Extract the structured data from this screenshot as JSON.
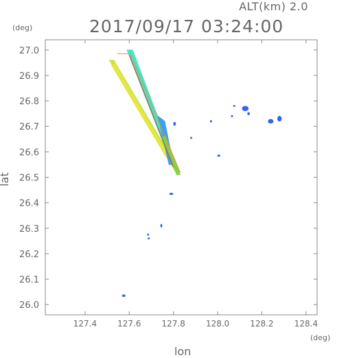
{
  "header": {
    "altitude_label": "ALT(km) 2.0",
    "datetime": "2017/09/17 03:24:00"
  },
  "chart_data": {
    "type": "heatmap",
    "title": "2017/09/17 03:24:00",
    "subtitle": "ALT(km) 2.0",
    "xlabel": "lon",
    "ylabel": "lat",
    "x_unit": "(deg)",
    "y_unit": "(deg)",
    "xlim": [
      127.22,
      128.45
    ],
    "ylim": [
      25.96,
      27.04
    ],
    "xticks": [
      127.4,
      127.6,
      127.8,
      128.0,
      128.2,
      128.4
    ],
    "xtick_labels": [
      "127.4",
      "127.6",
      "127.8",
      "128.0",
      "128.2",
      "128.4"
    ],
    "yticks": [
      26.0,
      26.1,
      26.2,
      26.3,
      26.4,
      26.5,
      26.6,
      26.7,
      26.8,
      26.9,
      27.0
    ],
    "ytick_labels": [
      "26.0",
      "26.1",
      "26.2",
      "26.3",
      "26.4",
      "26.5",
      "26.6",
      "26.7",
      "26.8",
      "26.9",
      "27.0"
    ],
    "grid": false,
    "colors": {
      "yellow_green": "#c8e63c",
      "yellow": "#e6e646",
      "green": "#7fd24a",
      "cyan": "#46e6c8",
      "sky": "#3ca0f0",
      "blue": "#3264f0",
      "red": "#e63232",
      "orange": "#f08c32"
    },
    "echoes": [
      {
        "kind": "beam",
        "color": "yellow_green",
        "points": [
          [
            127.51,
            26.96
          ],
          [
            127.53,
            26.96
          ],
          [
            127.83,
            26.52
          ],
          [
            127.81,
            26.52
          ]
        ]
      },
      {
        "kind": "beam",
        "color": "yellow",
        "points": [
          [
            127.52,
            26.94
          ],
          [
            127.535,
            26.945
          ],
          [
            127.78,
            26.58
          ],
          [
            127.77,
            26.575
          ]
        ]
      },
      {
        "kind": "beam",
        "color": "cyan",
        "points": [
          [
            127.59,
            27.0
          ],
          [
            127.615,
            27.0
          ],
          [
            127.78,
            26.62
          ],
          [
            127.76,
            26.62
          ]
        ]
      },
      {
        "kind": "beam",
        "color": "sky",
        "points": [
          [
            127.73,
            26.74
          ],
          [
            127.76,
            26.72
          ],
          [
            127.8,
            26.55
          ],
          [
            127.78,
            26.55
          ]
        ]
      },
      {
        "kind": "beam",
        "color": "green",
        "points": [
          [
            127.745,
            26.66
          ],
          [
            127.765,
            26.66
          ],
          [
            127.83,
            26.51
          ],
          [
            127.815,
            26.51
          ]
        ]
      },
      {
        "kind": "line",
        "color": "red",
        "points": [
          [
            127.6,
            26.98
          ],
          [
            127.8,
            26.54
          ]
        ]
      },
      {
        "kind": "line",
        "color": "orange",
        "points": [
          [
            127.545,
            26.985
          ],
          [
            127.605,
            26.985
          ],
          [
            127.83,
            26.52
          ]
        ]
      },
      {
        "kind": "blob",
        "color": "blue",
        "center": [
          127.805,
          26.71
        ],
        "size": [
          0.012,
          0.015
        ]
      },
      {
        "kind": "blob",
        "color": "blue",
        "center": [
          127.88,
          26.655
        ],
        "size": [
          0.008,
          0.008
        ]
      },
      {
        "kind": "blob",
        "color": "blue",
        "center": [
          127.97,
          26.72
        ],
        "size": [
          0.007,
          0.009
        ]
      },
      {
        "kind": "blob",
        "color": "blue",
        "center": [
          128.005,
          26.585
        ],
        "size": [
          0.014,
          0.008
        ]
      },
      {
        "kind": "blob",
        "color": "blue",
        "center": [
          128.075,
          26.78
        ],
        "size": [
          0.008,
          0.008
        ]
      },
      {
        "kind": "blob",
        "color": "blue",
        "center": [
          128.065,
          26.74
        ],
        "size": [
          0.006,
          0.006
        ]
      },
      {
        "kind": "blob",
        "color": "blue",
        "center": [
          128.125,
          26.77
        ],
        "size": [
          0.03,
          0.02
        ]
      },
      {
        "kind": "blob",
        "color": "blue",
        "center": [
          128.14,
          26.75
        ],
        "size": [
          0.012,
          0.012
        ]
      },
      {
        "kind": "blob",
        "color": "blue",
        "center": [
          128.24,
          26.72
        ],
        "size": [
          0.025,
          0.018
        ]
      },
      {
        "kind": "blob",
        "color": "blue",
        "center": [
          128.28,
          26.73
        ],
        "size": [
          0.02,
          0.022
        ]
      },
      {
        "kind": "blob",
        "color": "blue",
        "center": [
          127.79,
          26.435
        ],
        "size": [
          0.018,
          0.009
        ]
      },
      {
        "kind": "blob",
        "color": "blue",
        "center": [
          127.745,
          26.31
        ],
        "size": [
          0.006,
          0.014
        ]
      },
      {
        "kind": "blob",
        "color": "blue",
        "center": [
          127.685,
          26.275
        ],
        "size": [
          0.008,
          0.008
        ]
      },
      {
        "kind": "blob",
        "color": "blue",
        "center": [
          127.688,
          26.26
        ],
        "size": [
          0.005,
          0.006
        ]
      },
      {
        "kind": "blob",
        "color": "blue",
        "center": [
          127.575,
          26.035
        ],
        "size": [
          0.016,
          0.01
        ]
      }
    ]
  }
}
